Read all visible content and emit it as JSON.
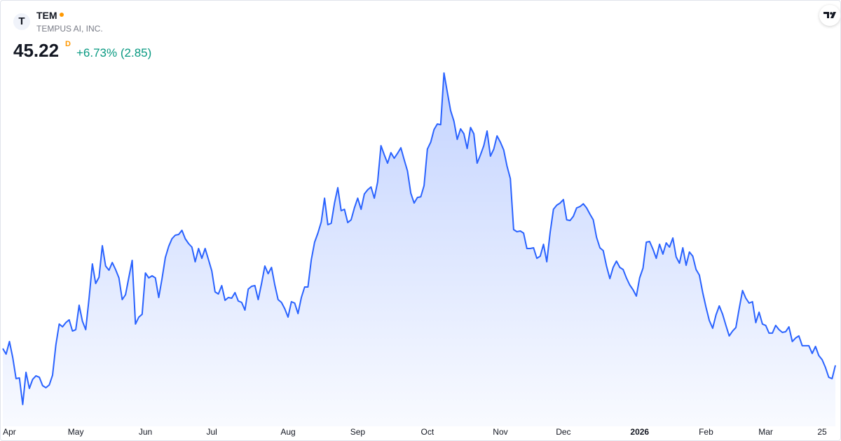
{
  "header": {
    "logo": "T",
    "ticker": "TEM",
    "name": "TEMPUS AI, INC.",
    "price": 45.22,
    "interval": "D",
    "change": "+6.73% (2.85)"
  },
  "chart_data": {
    "type": "area",
    "color": "#2962ff",
    "ylim": [
      35,
      115
    ],
    "xlim": [
      0,
      251
    ],
    "xticks": [
      {
        "value": 2,
        "label": "Apr"
      },
      {
        "value": 22,
        "label": "May"
      },
      {
        "value": 43,
        "label": "Jun"
      },
      {
        "value": 63,
        "label": "Jul"
      },
      {
        "value": 86,
        "label": "Aug"
      },
      {
        "value": 107,
        "label": "Sep"
      },
      {
        "value": 128,
        "label": "Oct"
      },
      {
        "value": 150,
        "label": "Nov"
      },
      {
        "value": 169,
        "label": "Dec"
      },
      {
        "value": 192,
        "label": "2026"
      },
      {
        "value": 212,
        "label": "Feb"
      },
      {
        "value": 230,
        "label": "Mar"
      },
      {
        "value": 247,
        "label": "25"
      }
    ],
    "series": [
      {
        "name": "TEM",
        "color": "#2962ff",
        "values": [
          48.82,
          47.62,
          50.32,
          46.87,
          42.37,
          42.52,
          36.82,
          43.72,
          40.27,
          42.22,
          42.97,
          42.67,
          40.87,
          40.42,
          41.02,
          43.12,
          49.57,
          54.07,
          53.47,
          54.37,
          54.97,
          52.57,
          52.87,
          58.12,
          54.67,
          52.87,
          59.62,
          66.97,
          62.77,
          64.12,
          70.87,
          66.52,
          65.62,
          67.27,
          65.77,
          63.97,
          59.32,
          60.37,
          64.12,
          67.72,
          54.07,
          55.57,
          56.17,
          65.02,
          63.97,
          64.42,
          63.97,
          59.77,
          63.82,
          68.32,
          70.72,
          72.37,
          73.12,
          73.27,
          74.17,
          72.37,
          71.32,
          70.57,
          67.42,
          70.27,
          68.17,
          70.27,
          67.87,
          65.47,
          60.97,
          60.52,
          62.32,
          59.17,
          59.77,
          59.62,
          60.82,
          59.02,
          58.72,
          57.07,
          61.57,
          62.17,
          62.32,
          59.32,
          62.77,
          66.52,
          64.87,
          66.22,
          62.47,
          59.32,
          58.72,
          57.37,
          55.57,
          58.87,
          58.57,
          56.32,
          59.77,
          62.02,
          62.02,
          67.87,
          71.62,
          73.57,
          75.97,
          81.07,
          75.37,
          75.67,
          80.02,
          83.32,
          78.37,
          78.67,
          75.82,
          76.42,
          78.97,
          81.07,
          78.67,
          81.97,
          82.87,
          83.47,
          81.07,
          84.52,
          92.32,
          90.37,
          88.57,
          90.82,
          89.62,
          90.67,
          91.87,
          89.32,
          86.92,
          82.12,
          80.02,
          81.22,
          81.37,
          83.77,
          91.57,
          93.07,
          95.77,
          96.97,
          96.82,
          107.92,
          103.87,
          99.82,
          97.57,
          93.67,
          95.92,
          94.87,
          91.72,
          96.22,
          94.87,
          88.57,
          90.37,
          92.32,
          95.47,
          90.07,
          91.57,
          94.42,
          93.07,
          91.42,
          87.97,
          85.27,
          74.32,
          73.87,
          74.02,
          73.57,
          70.27,
          70.27,
          70.42,
          68.17,
          68.62,
          71.17,
          67.42,
          73.72,
          78.67,
          79.57,
          80.02,
          80.77,
          76.42,
          76.27,
          77.17,
          78.97,
          79.27,
          79.87,
          78.97,
          77.62,
          76.42,
          72.67,
          70.42,
          69.82,
          66.52,
          63.82,
          66.22,
          67.57,
          66.22,
          65.77,
          63.97,
          62.47,
          61.42,
          60.07,
          63.97,
          66.07,
          71.62,
          71.77,
          70.12,
          68.17,
          71.17,
          69.07,
          71.47,
          70.57,
          72.52,
          68.47,
          67.12,
          70.42,
          66.67,
          69.52,
          68.62,
          65.77,
          64.57,
          60.82,
          57.67,
          54.82,
          53.17,
          56.02,
          57.97,
          56.17,
          53.77,
          51.52,
          52.57,
          53.32,
          57.37,
          61.27,
          59.62,
          58.57,
          58.87,
          54.37,
          56.62,
          54.07,
          53.77,
          52.12,
          52.12,
          53.77,
          52.87,
          52.27,
          52.42,
          53.47,
          50.32,
          51.07,
          51.52,
          49.42,
          49.42,
          49.42,
          47.77,
          49.27,
          47.32,
          46.42,
          44.77,
          42.67,
          42.37,
          45.22
        ]
      }
    ]
  }
}
